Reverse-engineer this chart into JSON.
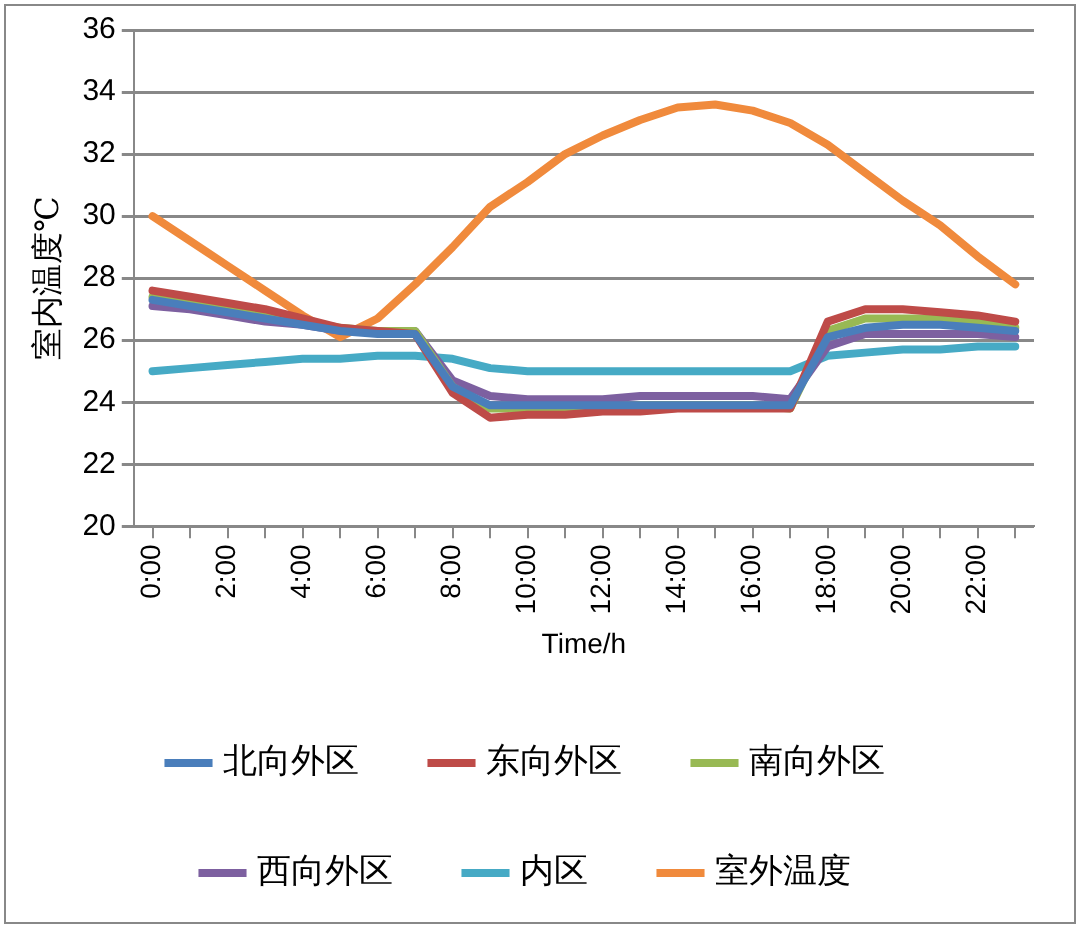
{
  "chart_data": {
    "type": "line",
    "xlabel": "Time/h",
    "ylabel": "室内温度℃",
    "categories": [
      "0:00",
      null,
      "2:00",
      null,
      "4:00",
      null,
      "6:00",
      null,
      "8:00",
      null,
      "10:00",
      null,
      "12:00",
      null,
      "14:00",
      null,
      "16:00",
      null,
      "18:00",
      null,
      "20:00",
      null,
      "22:00",
      null
    ],
    "series": [
      {
        "name": "北向外区",
        "color": "#4a7ebb",
        "values": [
          27.3,
          27.1,
          26.9,
          26.7,
          26.5,
          26.3,
          26.2,
          26.2,
          24.5,
          23.9,
          23.9,
          23.9,
          23.9,
          23.9,
          23.9,
          23.9,
          23.9,
          23.9,
          26.1,
          26.4,
          26.5,
          26.5,
          26.4,
          26.3
        ]
      },
      {
        "name": "东向外区",
        "color": "#be4b48",
        "values": [
          27.6,
          27.4,
          27.2,
          27.0,
          26.7,
          26.4,
          26.3,
          26.2,
          24.3,
          23.5,
          23.6,
          23.6,
          23.7,
          23.7,
          23.8,
          23.8,
          23.8,
          23.8,
          26.6,
          27.0,
          27.0,
          26.9,
          26.8,
          26.6
        ]
      },
      {
        "name": "南向外区",
        "color": "#98b954",
        "values": [
          27.4,
          27.2,
          27.0,
          26.8,
          26.6,
          26.4,
          26.3,
          26.3,
          24.5,
          23.8,
          23.8,
          23.8,
          23.8,
          23.9,
          23.9,
          23.9,
          23.9,
          23.8,
          26.3,
          26.7,
          26.7,
          26.7,
          26.6,
          26.4
        ]
      },
      {
        "name": "西向外区",
        "color": "#7d60a0",
        "values": [
          27.1,
          27.0,
          26.8,
          26.6,
          26.5,
          26.3,
          26.3,
          26.3,
          24.7,
          24.2,
          24.1,
          24.1,
          24.1,
          24.2,
          24.2,
          24.2,
          24.2,
          24.1,
          25.8,
          26.2,
          26.2,
          26.2,
          26.2,
          26.1
        ]
      },
      {
        "name": "内区",
        "color": "#46aac5",
        "values": [
          25.0,
          25.1,
          25.2,
          25.3,
          25.4,
          25.4,
          25.5,
          25.5,
          25.4,
          25.1,
          25.0,
          25.0,
          25.0,
          25.0,
          25.0,
          25.0,
          25.0,
          25.0,
          25.5,
          25.6,
          25.7,
          25.7,
          25.8,
          25.8
        ]
      },
      {
        "name": "室外温度",
        "color": "#f08a3c",
        "values": [
          30.0,
          29.2,
          28.4,
          27.6,
          26.8,
          26.1,
          26.7,
          27.8,
          29.0,
          30.3,
          31.1,
          32.0,
          32.6,
          33.1,
          33.5,
          33.6,
          33.4,
          33.0,
          32.3,
          31.4,
          30.5,
          29.7,
          28.7,
          27.8
        ]
      }
    ],
    "ylim": [
      20,
      36
    ],
    "yticks": [
      20,
      22,
      24,
      26,
      28,
      30,
      32,
      34,
      36
    ],
    "grid": "y",
    "legend": "bottom",
    "marker": "none",
    "line_style": "solid"
  }
}
